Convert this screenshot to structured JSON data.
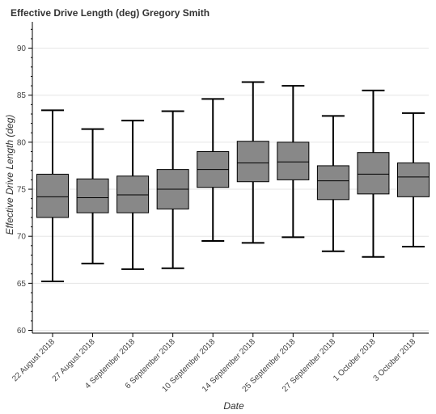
{
  "chart_data": {
    "type": "box",
    "title": "Effective Drive Length (deg)  Gregory Smith",
    "xlabel": "Date",
    "ylabel": "Effective Drive Length (deg)",
    "ylim": [
      59.7,
      92.8
    ],
    "yticks": [
      60,
      65,
      70,
      75,
      80,
      85,
      90
    ],
    "grid": true,
    "box_color": "#888888",
    "categories": [
      "22 August 2018",
      "27 August 2018",
      "4 September 2018",
      "6 September 2018",
      "10 September 2018",
      "14 September 2018",
      "25 September 2018",
      "27 September 2018",
      "1 October 2018",
      "3 October 2018"
    ],
    "series": [
      {
        "boxes": [
          {
            "min": 65.2,
            "q1": 72.0,
            "median": 74.2,
            "q3": 76.6,
            "max": 83.4
          },
          {
            "min": 67.1,
            "q1": 72.5,
            "median": 74.1,
            "q3": 76.1,
            "max": 81.4
          },
          {
            "min": 66.5,
            "q1": 72.5,
            "median": 74.4,
            "q3": 76.4,
            "max": 82.3
          },
          {
            "min": 66.6,
            "q1": 72.9,
            "median": 75.0,
            "q3": 77.1,
            "max": 83.3
          },
          {
            "min": 69.5,
            "q1": 75.2,
            "median": 77.1,
            "q3": 79.0,
            "max": 84.6
          },
          {
            "min": 69.3,
            "q1": 75.8,
            "median": 77.8,
            "q3": 80.1,
            "max": 86.4
          },
          {
            "min": 69.9,
            "q1": 76.0,
            "median": 77.9,
            "q3": 80.0,
            "max": 86.0
          },
          {
            "min": 68.4,
            "q1": 73.9,
            "median": 75.9,
            "q3": 77.5,
            "max": 82.8
          },
          {
            "min": 67.8,
            "q1": 74.5,
            "median": 76.6,
            "q3": 78.9,
            "max": 85.5
          },
          {
            "min": 68.9,
            "q1": 74.2,
            "median": 76.3,
            "q3": 77.8,
            "max": 83.1
          }
        ]
      }
    ]
  }
}
